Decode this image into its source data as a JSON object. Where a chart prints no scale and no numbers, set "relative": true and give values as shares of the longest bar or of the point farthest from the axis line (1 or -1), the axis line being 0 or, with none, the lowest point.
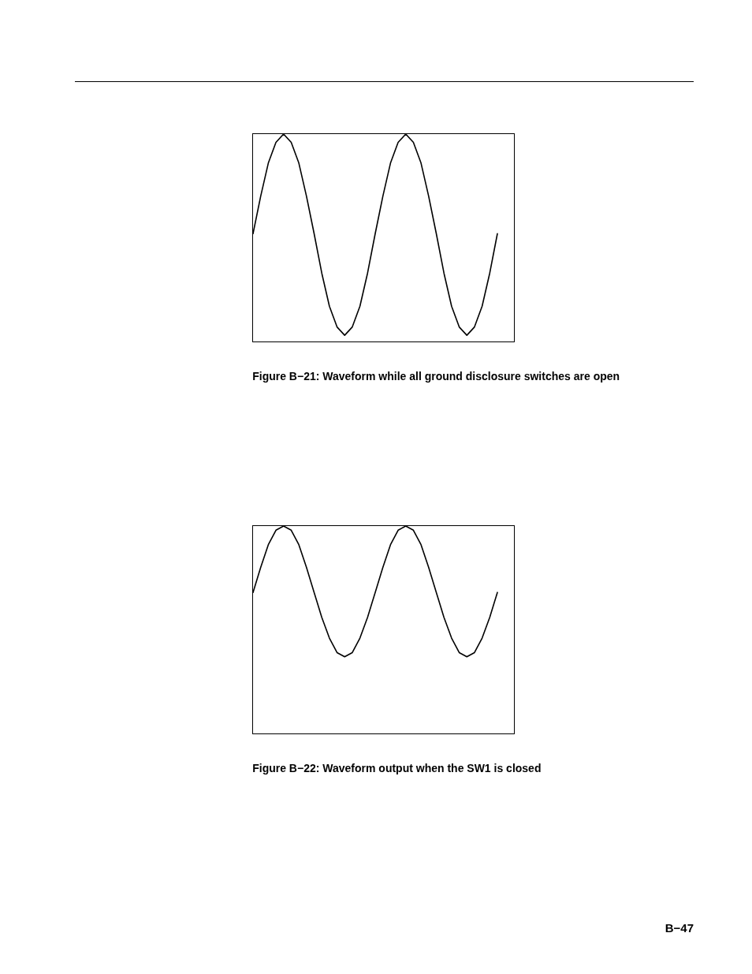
{
  "chart_data": [
    {
      "type": "line",
      "title": "Figure B−21: Waveform while all ground disclosure switches are open",
      "relative": true,
      "tick_labels": false,
      "color": "#000000",
      "categories": [
        null,
        null,
        null,
        null,
        null,
        null,
        null,
        null,
        null,
        null,
        null,
        null,
        null,
        null,
        null,
        null,
        null,
        null,
        null,
        null,
        null,
        null,
        null,
        null,
        null,
        null,
        null,
        null,
        null,
        null,
        null,
        null,
        null
      ],
      "values": [
        0.52,
        0.7,
        0.86,
        0.96,
        1,
        0.96,
        0.86,
        0.7,
        0.52,
        0.33,
        0.17,
        0.07,
        0.03,
        0.07,
        0.17,
        0.33,
        0.52,
        0.7,
        0.86,
        0.96,
        1,
        0.96,
        0.86,
        0.7,
        0.52,
        0.33,
        0.17,
        0.07,
        0.03,
        0.07,
        0.17,
        0.33,
        0.52
      ]
    },
    {
      "type": "line",
      "title": "Figure B−22: Waveform output when the SW1 is closed",
      "relative": true,
      "tick_labels": false,
      "color": "#000000",
      "annotations": [
        "B−47"
      ],
      "categories": [
        null,
        null,
        null,
        null,
        null,
        null,
        null,
        null,
        null,
        null,
        null,
        null,
        null,
        null,
        null,
        null,
        null,
        null,
        null,
        null,
        null,
        null,
        null,
        null,
        null,
        null,
        null,
        null,
        null,
        null,
        null,
        null,
        null
      ],
      "values": [
        0.68,
        0.8,
        0.91,
        0.98,
        1,
        0.98,
        0.91,
        0.8,
        0.68,
        0.56,
        0.46,
        0.39,
        0.37,
        0.39,
        0.46,
        0.56,
        0.68,
        0.8,
        0.91,
        0.98,
        1,
        0.98,
        0.91,
        0.8,
        0.68,
        0.56,
        0.46,
        0.39,
        0.37,
        0.39,
        0.46,
        0.56,
        0.68
      ]
    }
  ]
}
